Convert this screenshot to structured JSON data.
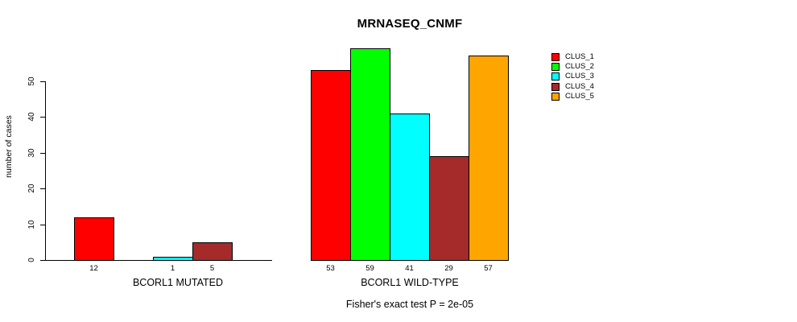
{
  "title": "MRNASEQ_CNMF",
  "y_axis": {
    "label": "number of cases",
    "ticks": [
      0,
      10,
      20,
      30,
      40,
      50
    ]
  },
  "footer": "Fisher's exact test P = 2e-05",
  "legend": {
    "position": "right",
    "entries": [
      {
        "label": "CLUS_1",
        "color": "#FF0000"
      },
      {
        "label": "CLUS_2",
        "color": "#00FF00"
      },
      {
        "label": "CLUS_3",
        "color": "#00FFFF"
      },
      {
        "label": "CLUS_4",
        "color": "#A52A2A"
      },
      {
        "label": "CLUS_5",
        "color": "#FFA500"
      }
    ]
  },
  "chart_data": {
    "type": "bar",
    "title": "MRNASEQ_CNMF",
    "xlabel": "",
    "ylabel": "number of cases",
    "ylim": [
      0,
      59
    ],
    "yticks": [
      0,
      10,
      20,
      30,
      40,
      50
    ],
    "grid": false,
    "legend_position": "right",
    "categories": [
      "BCORL1 MUTATED",
      "BCORL1 WILD-TYPE"
    ],
    "series": [
      {
        "name": "CLUS_1",
        "color": "#FF0000",
        "values": [
          12,
          53
        ]
      },
      {
        "name": "CLUS_2",
        "color": "#00FF00",
        "values": [
          0,
          59
        ]
      },
      {
        "name": "CLUS_3",
        "color": "#00FFFF",
        "values": [
          1,
          41
        ]
      },
      {
        "name": "CLUS_4",
        "color": "#A52A2A",
        "values": [
          5,
          29
        ]
      },
      {
        "name": "CLUS_5",
        "color": "#FFA500",
        "values": [
          0,
          57
        ]
      }
    ],
    "groups": [
      {
        "label": "BCORL1 MUTATED",
        "values": [
          12,
          0,
          1,
          5,
          0
        ]
      },
      {
        "label": "BCORL1 WILD-TYPE",
        "values": [
          53,
          59,
          41,
          29,
          57
        ]
      }
    ],
    "bar_value_labels_shown": "only nonzero bars",
    "annotation": "Fisher's exact test P = 2e-05"
  }
}
